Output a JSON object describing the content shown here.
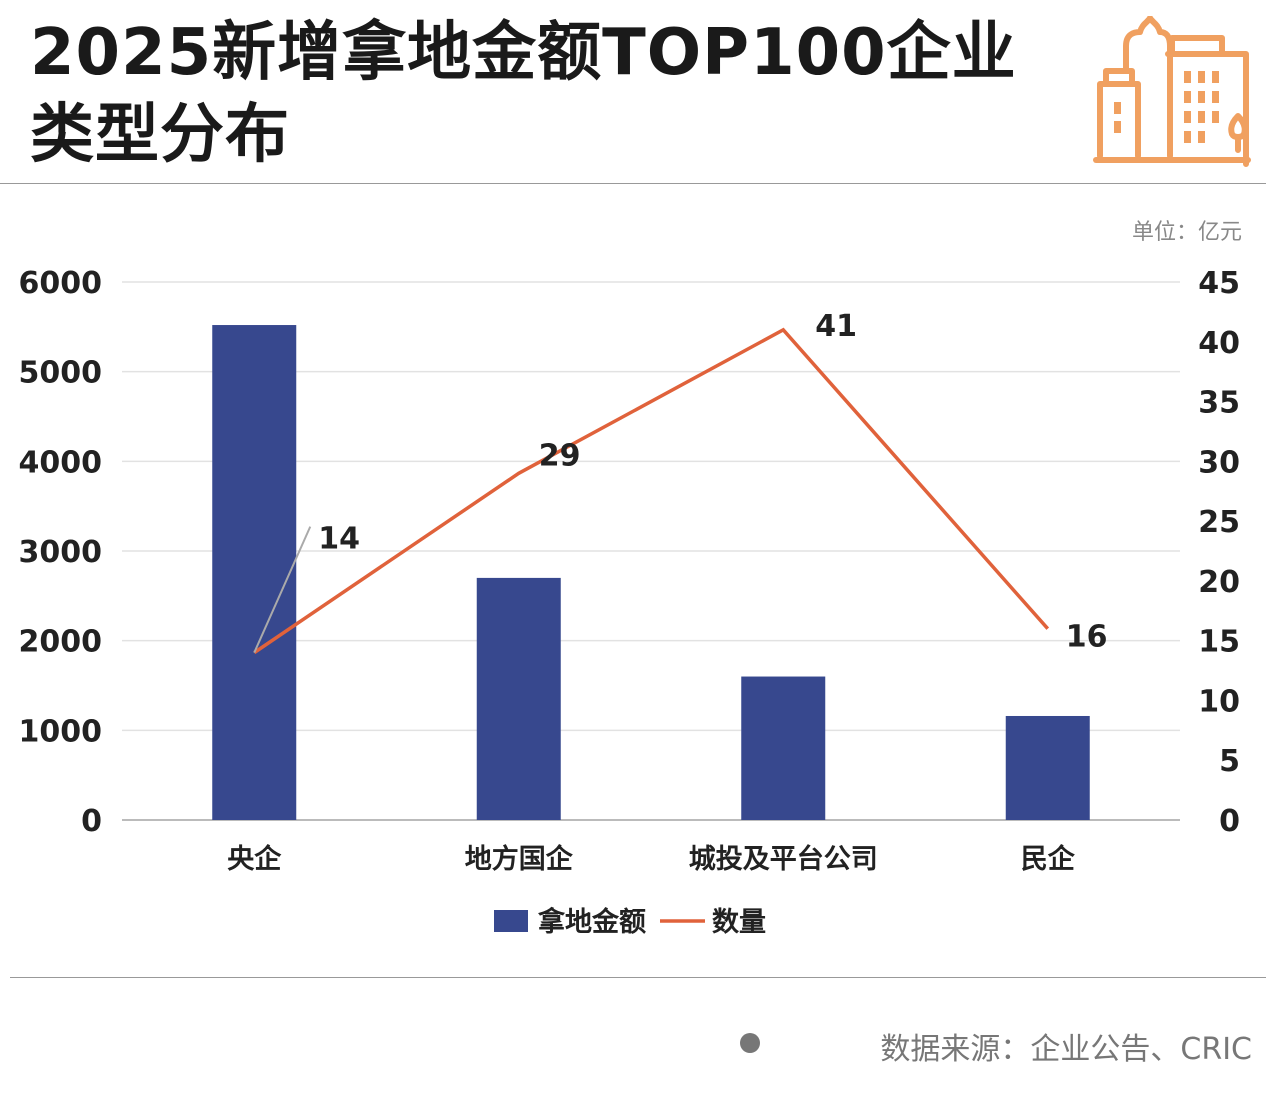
{
  "title": "2025新增拿地金额TOP100企业类型分布",
  "unit": "单位：亿元",
  "source": "数据来源：企业公告、CRIC",
  "colors": {
    "bar": "#37488e",
    "line": "#e0623b",
    "icon": "#f0a060"
  },
  "chart_data": {
    "type": "bar+line",
    "categories": [
      "央企",
      "地方国企",
      "城投及平台公司",
      "民企"
    ],
    "series": [
      {
        "name": "拿地金额",
        "type": "bar",
        "axis": "left",
        "values": [
          5520,
          2700,
          1600,
          1160
        ]
      },
      {
        "name": "数量",
        "type": "line",
        "axis": "right",
        "values": [
          14,
          29,
          41,
          16
        ]
      }
    ],
    "y_left": {
      "min": 0,
      "max": 6000,
      "ticks": [
        0,
        1000,
        2000,
        3000,
        4000,
        5000,
        6000
      ]
    },
    "y_right": {
      "min": 0,
      "max": 45,
      "ticks": [
        0,
        5,
        10,
        15,
        20,
        25,
        30,
        35,
        40,
        45
      ]
    },
    "grid": true,
    "legend": "bottom"
  }
}
